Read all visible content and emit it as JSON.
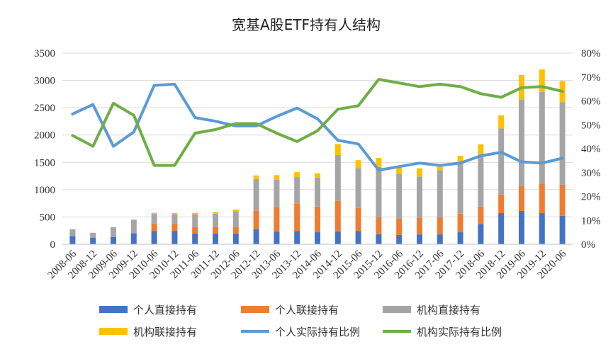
{
  "chart_data": {
    "type": "bar+line",
    "title": "宽基A股ETF持有人结构",
    "categories": [
      "2008-06",
      "2008-12",
      "2009-06",
      "2009-12",
      "2010-06",
      "2010-12",
      "2011-06",
      "2011-12",
      "2012-06",
      "2012-12",
      "2013-06",
      "2013-12",
      "2014-06",
      "2014-12",
      "2015-06",
      "2015-12",
      "2016-06",
      "2016-12",
      "2017-06",
      "2017-12",
      "2018-06",
      "2018-12",
      "2019-06",
      "2019-12",
      "2020-06"
    ],
    "y_left": {
      "min": 0,
      "max": 3500,
      "ticks": [
        "0",
        "500",
        "1000",
        "1500",
        "2000",
        "2500",
        "3000",
        "3500"
      ]
    },
    "y_right": {
      "min": 0,
      "max": 80,
      "ticks": [
        "0%",
        "10%",
        "20%",
        "30%",
        "40%",
        "50%",
        "60%",
        "70%",
        "80%"
      ]
    },
    "bar_series": [
      {
        "name": "个人直接持有",
        "color": "#4472C4",
        "values": [
          150,
          120,
          130,
          200,
          240,
          240,
          195,
          195,
          195,
          275,
          235,
          240,
          220,
          235,
          245,
          185,
          170,
          180,
          175,
          220,
          370,
          570,
          610,
          570,
          520
        ]
      },
      {
        "name": "个人联接持有",
        "color": "#ED7D31",
        "values": [
          0,
          0,
          0,
          0,
          140,
          140,
          120,
          120,
          120,
          345,
          450,
          500,
          470,
          560,
          420,
          310,
          290,
          300,
          320,
          340,
          320,
          340,
          460,
          540,
          570
        ]
      },
      {
        "name": "机构直接持有",
        "color": "#A5A5A5",
        "values": [
          125,
          90,
          180,
          250,
          175,
          170,
          230,
          245,
          290,
          575,
          495,
          490,
          530,
          840,
          730,
          920,
          830,
          760,
          860,
          930,
          960,
          1210,
          1580,
          1680,
          1510
        ]
      },
      {
        "name": "机构联接持有",
        "color": "#FFC000",
        "values": [
          0,
          0,
          0,
          0,
          20,
          20,
          30,
          30,
          30,
          65,
          85,
          90,
          80,
          200,
          145,
          165,
          110,
          150,
          110,
          130,
          180,
          240,
          450,
          410,
          390
        ]
      }
    ],
    "line_series": [
      {
        "name": "个人实际持有比例",
        "color": "#5B9BD5",
        "values": [
          54.5,
          58.5,
          41,
          47,
          66.5,
          67,
          53,
          51.5,
          49.5,
          49.5,
          53.5,
          57,
          52.5,
          43.5,
          42,
          31,
          32.5,
          34,
          33,
          34,
          37,
          38.5,
          34.5,
          34,
          36
        ]
      },
      {
        "name": "机构实际持有比例",
        "color": "#70AD47",
        "values": [
          45.5,
          41,
          59,
          54,
          33,
          33,
          46.5,
          48,
          50.5,
          50.5,
          46.5,
          43,
          47.5,
          56.5,
          58,
          69,
          67.5,
          66,
          67,
          66,
          63,
          61.5,
          65.5,
          66,
          64
        ]
      }
    ],
    "legend_position": "bottom"
  }
}
